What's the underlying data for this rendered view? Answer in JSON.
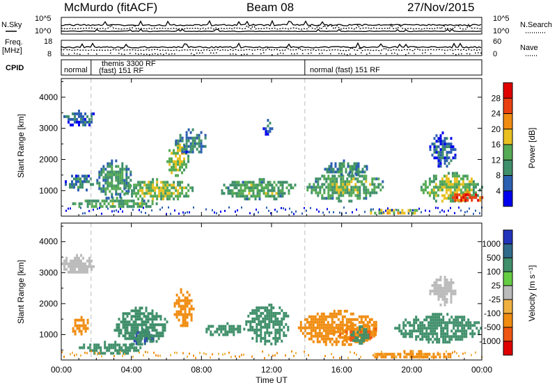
{
  "header": {
    "station": "McMurdo (fitACF)",
    "beam": "Beam 08",
    "date": "27/Nov/2015"
  },
  "status_panel": {
    "nsky_label": "N.Sky",
    "nsearch_label": "N.Search",
    "freq_label_line1": "Freq.",
    "freq_label_line2": "[MHz]",
    "nave_label": "Nave",
    "cpid_label": "CPID",
    "left_ticks_top": [
      "10^5",
      "10^0"
    ],
    "right_ticks_top": [
      "10^5",
      "10^0"
    ],
    "left_ticks_bottom": [
      "18",
      "8"
    ],
    "right_ticks_bottom": [
      "60",
      "0"
    ],
    "cpid_segments": [
      {
        "label": "normal",
        "start": 0.0,
        "end": 1.7
      },
      {
        "label": "themis 3300 RF",
        "start": 1.7,
        "end": 13.9,
        "line2": "(fast) 151 RF"
      },
      {
        "label": "normal (fast) 151 RF",
        "start": 13.9,
        "end": 24.0
      }
    ]
  },
  "colors": {
    "power_scale": [
      "#0000ee",
      "#2b5fb0",
      "#3f8f6a",
      "#55aa55",
      "#e8c020",
      "#f08c10",
      "#e84010",
      "#e00000"
    ],
    "velocity_scale": [
      "#2233bb",
      "#2f6a8a",
      "#3f8f6a",
      "#66cc44",
      "#bbbbbb",
      "#f0b040",
      "#f08c10",
      "#ee5511",
      "#e00000"
    ]
  },
  "chart_data": [
    {
      "type": "heatmap",
      "name": "power-panel",
      "ylabel": "Slant Range [km]",
      "xlabel": "Time UT",
      "xlim": [
        0,
        24
      ],
      "ylim": [
        180,
        4600
      ],
      "xticks": [
        "00:00",
        "04:00",
        "08:00",
        "12:00",
        "16:00",
        "20:00",
        "00:00"
      ],
      "yticks": [
        1000,
        2000,
        3000,
        4000
      ],
      "colorbar": {
        "label": "Power [dB]",
        "ticks": [
          4,
          8,
          12,
          16,
          20,
          24,
          28
        ],
        "range": [
          0,
          32
        ]
      },
      "regions": [
        {
          "t": [
            0.0,
            2.0
          ],
          "r": [
            3100,
            3600
          ],
          "value": 8
        },
        {
          "t": [
            0.2,
            1.8
          ],
          "r": [
            1000,
            1600
          ],
          "value": 10
        },
        {
          "t": [
            0.5,
            5.5
          ],
          "r": [
            450,
            800
          ],
          "value": 14
        },
        {
          "t": [
            2.0,
            4.0
          ],
          "r": [
            800,
            2000
          ],
          "value": 12
        },
        {
          "t": [
            3.5,
            7.5
          ],
          "r": [
            700,
            1400
          ],
          "value": 16
        },
        {
          "t": [
            6.0,
            7.2
          ],
          "r": [
            1500,
            2600
          ],
          "value": 18
        },
        {
          "t": [
            6.5,
            8.3
          ],
          "r": [
            2200,
            3000
          ],
          "value": 10
        },
        {
          "t": [
            9.0,
            13.5
          ],
          "r": [
            750,
            1400
          ],
          "value": 14
        },
        {
          "t": [
            11.5,
            12.0
          ],
          "r": [
            2800,
            3300
          ],
          "value": 8
        },
        {
          "t": [
            14.0,
            18.5
          ],
          "r": [
            700,
            1600
          ],
          "value": 14
        },
        {
          "t": [
            15.0,
            17.5
          ],
          "r": [
            1500,
            2000
          ],
          "value": 10
        },
        {
          "t": [
            17.5,
            20.5
          ],
          "r": [
            250,
            500
          ],
          "value": 18
        },
        {
          "t": [
            20.5,
            24.0
          ],
          "r": [
            650,
            1600
          ],
          "value": 16
        },
        {
          "t": [
            22.3,
            24.0
          ],
          "r": [
            650,
            1000
          ],
          "value": 28
        },
        {
          "t": [
            21.0,
            22.5
          ],
          "r": [
            1800,
            2900
          ],
          "value": 8
        }
      ]
    },
    {
      "type": "heatmap",
      "name": "velocity-panel",
      "ylabel": "Slant Range [km]",
      "xlabel": "Time UT",
      "xlim": [
        0,
        24
      ],
      "ylim": [
        180,
        4600
      ],
      "xticks": [
        "00:00",
        "04:00",
        "08:00",
        "12:00",
        "16:00",
        "20:00",
        "00:00"
      ],
      "yticks": [
        1000,
        2000,
        3000,
        4000
      ],
      "colorbar": {
        "label": "Velocity [m s⁻¹]",
        "ticks": [
          1000,
          500,
          100,
          25,
          -25,
          -100,
          -500,
          -1000
        ]
      },
      "regions": [
        {
          "t": [
            0.0,
            1.8
          ],
          "r": [
            3000,
            3600
          ],
          "value": 0
        },
        {
          "t": [
            0.5,
            1.6
          ],
          "r": [
            1000,
            1600
          ],
          "value": -200
        },
        {
          "t": [
            1.0,
            4.5
          ],
          "r": [
            400,
            800
          ],
          "value": 300
        },
        {
          "t": [
            4.0,
            5.3
          ],
          "r": [
            700,
            1200
          ],
          "value": 900
        },
        {
          "t": [
            3.0,
            6.0
          ],
          "r": [
            700,
            1900
          ],
          "value": 250
        },
        {
          "t": [
            6.3,
            7.5
          ],
          "r": [
            1300,
            2500
          ],
          "value": -250
        },
        {
          "t": [
            8.0,
            10.5
          ],
          "r": [
            1000,
            1400
          ],
          "value": 200
        },
        {
          "t": [
            10.5,
            13.0
          ],
          "r": [
            700,
            2000
          ],
          "value": 200
        },
        {
          "t": [
            13.5,
            18.0
          ],
          "r": [
            700,
            1800
          ],
          "value": -250
        },
        {
          "t": [
            15.5,
            18.0
          ],
          "r": [
            800,
            1400
          ],
          "value": -400
        },
        {
          "t": [
            16.5,
            17.5
          ],
          "r": [
            700,
            1300
          ],
          "value": 300
        },
        {
          "t": [
            19.0,
            24.0
          ],
          "r": [
            800,
            1700
          ],
          "value": 200
        },
        {
          "t": [
            17.5,
            22.5
          ],
          "r": [
            250,
            500
          ],
          "value": -150
        },
        {
          "t": [
            21.0,
            22.5
          ],
          "r": [
            2000,
            2900
          ],
          "value": 0
        }
      ]
    }
  ]
}
